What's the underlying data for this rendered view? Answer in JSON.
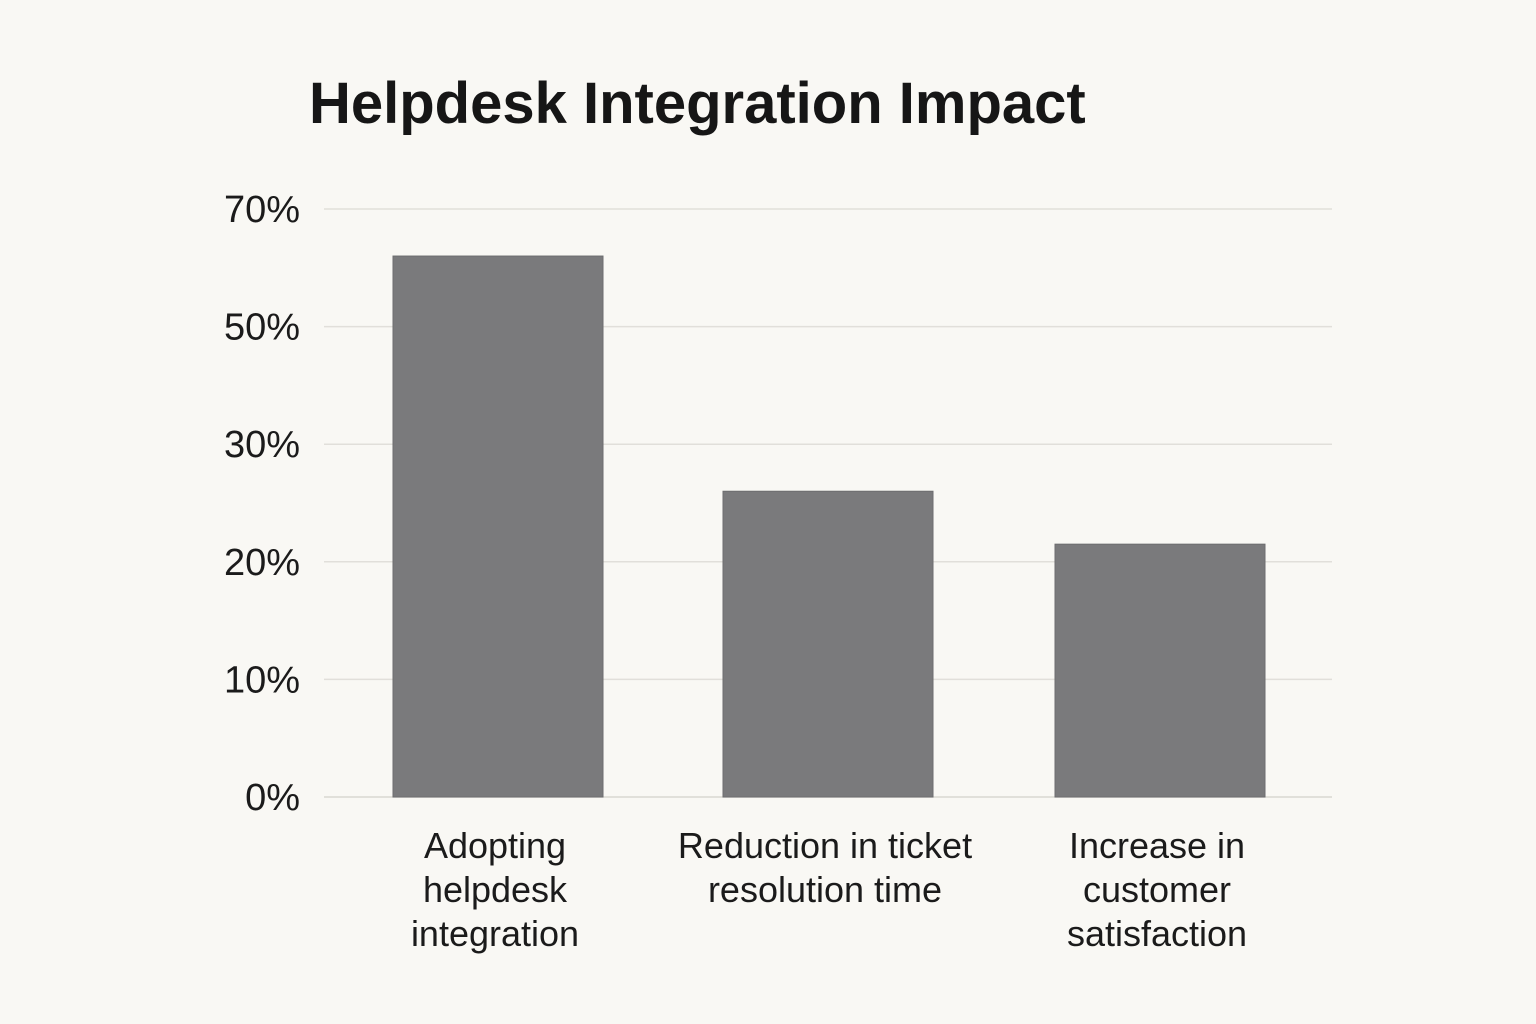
{
  "chart_data": {
    "type": "bar",
    "title": "Helpdesk Integration Impact",
    "xlabel": "",
    "ylabel": "",
    "categories": [
      "Adopting helpdesk integration",
      "Reduction in ticket resolution time",
      "Increase in customer satisfaction"
    ],
    "category_lines": [
      [
        "Adopting",
        "helpdesk",
        "integration"
      ],
      [
        "Reduction in ticket",
        "resolution time"
      ],
      [
        "Increase in",
        "customer",
        "satisfaction"
      ]
    ],
    "values": [
      62,
      26,
      21.5
    ],
    "y_ticks": [
      {
        "value": 0,
        "label": "0%"
      },
      {
        "value": 10,
        "label": "10%"
      },
      {
        "value": 20,
        "label": "20%"
      },
      {
        "value": 30,
        "label": "30%"
      },
      {
        "value": 50,
        "label": "50%"
      },
      {
        "value": 70,
        "label": "70%"
      }
    ],
    "y_tick_display_positions": [
      0,
      1,
      2,
      3,
      4,
      5
    ],
    "unit": "%",
    "grid": true,
    "legend": "none",
    "colors": {
      "bar": "#7a7a7c",
      "grid": "#e1dfda",
      "background": "#f9f8f4",
      "text": "#161616"
    }
  }
}
